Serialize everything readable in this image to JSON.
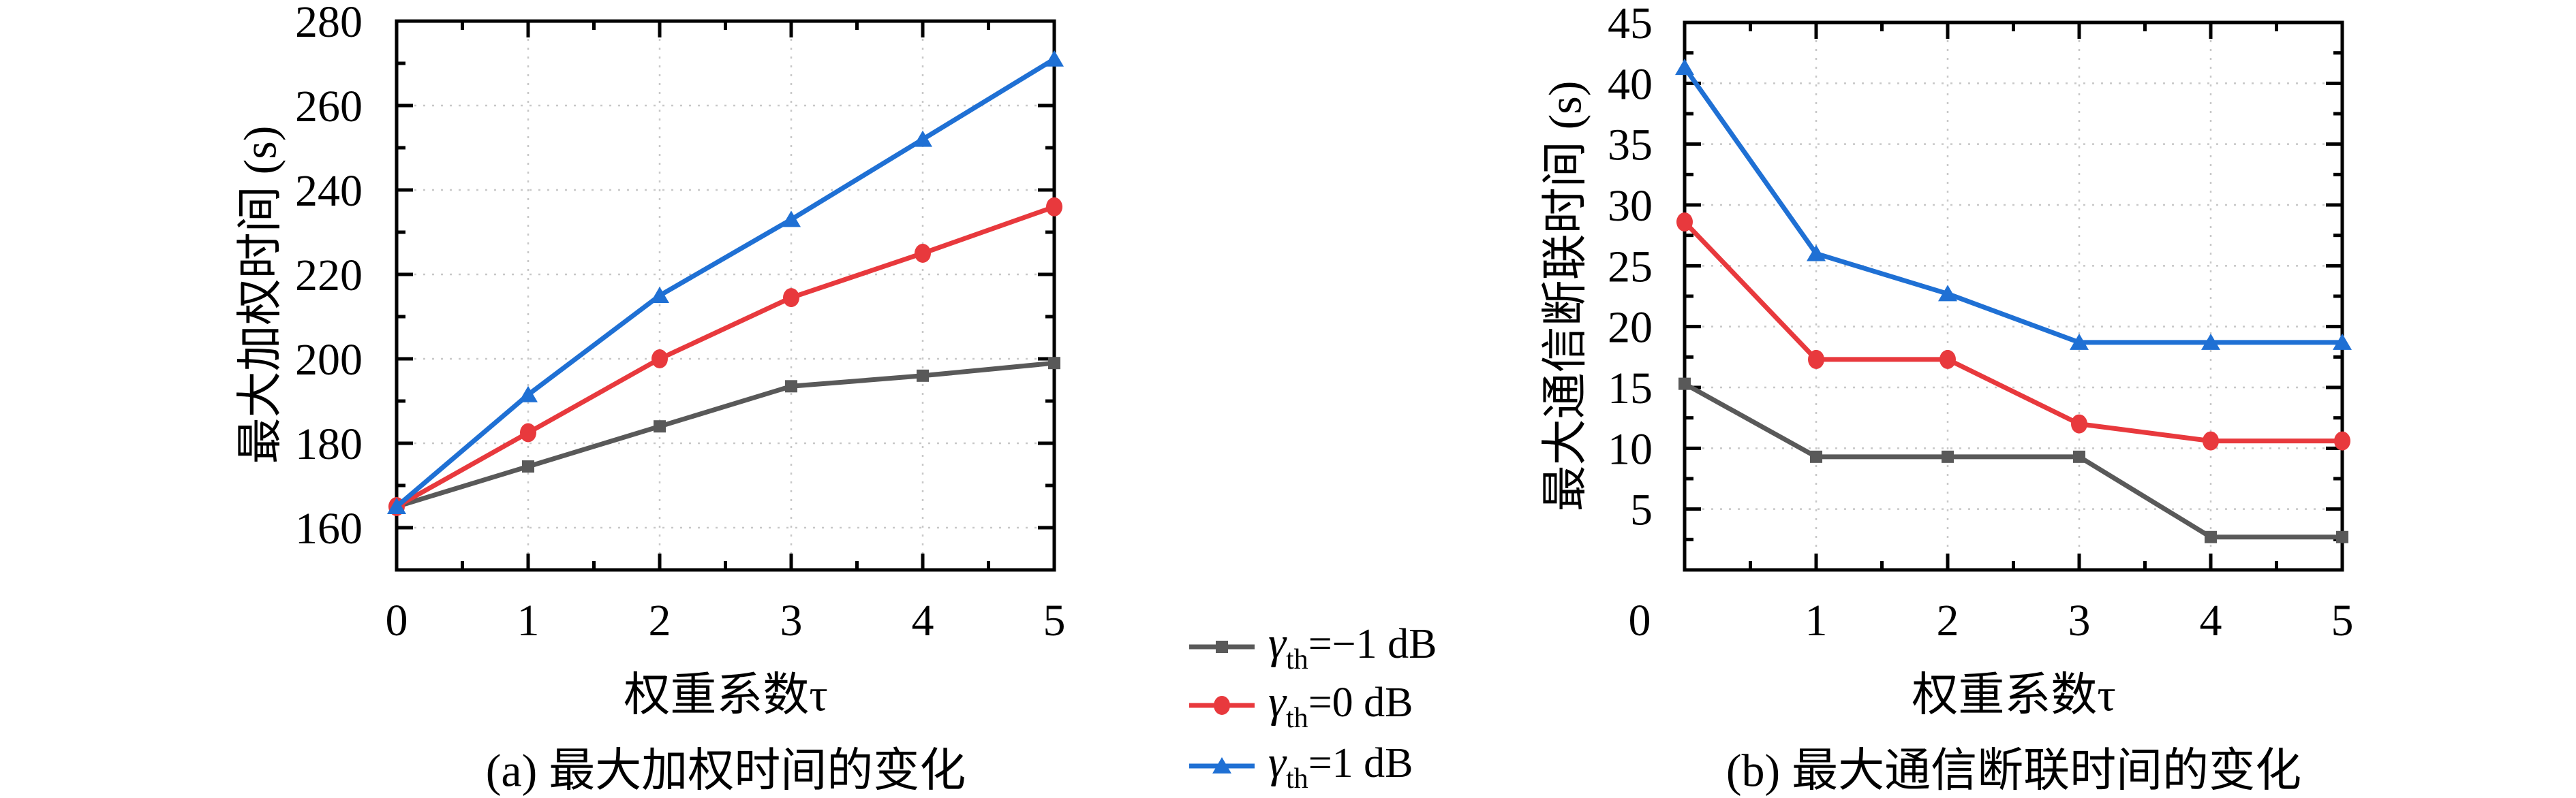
{
  "figure": {
    "background": "#ffffff"
  },
  "colors": {
    "axis": "#000000",
    "grid": "#c8c8c8",
    "series_gray": "#595959",
    "series_red": "#e8393d",
    "series_blue": "#1f70d4"
  },
  "legend": {
    "items": [
      {
        "gamma": "γ",
        "sub": "th",
        "rest": "=−1 dB",
        "marker": "square",
        "color": "#595959"
      },
      {
        "gamma": "γ",
        "sub": "th",
        "rest": "=0 dB",
        "marker": "circle",
        "color": "#e8393d"
      },
      {
        "gamma": "γ",
        "sub": "th",
        "rest": "=1 dB",
        "marker": "triangle",
        "color": "#1f70d4"
      }
    ]
  },
  "chart_data": [
    {
      "type": "line",
      "panel": "a",
      "title": "(a) 最大加权时间的变化",
      "xlabel": "权重系数τ",
      "ylabel": "最大加权时间 (s)",
      "xlim": [
        0,
        5
      ],
      "ylim": [
        150,
        280
      ],
      "xticks": [
        0,
        1,
        2,
        3,
        4,
        5
      ],
      "yticks": [
        160,
        180,
        200,
        220,
        240,
        260,
        280
      ],
      "x_minor_step": 0.5,
      "y_minor_step": 10,
      "grid": true,
      "x": [
        0,
        1,
        2,
        3,
        4,
        5
      ],
      "series": [
        {
          "name": "γth=−1 dB",
          "marker": "square",
          "color": "#595959",
          "values": [
            165,
            174.5,
            184,
            193.5,
            196,
            199
          ]
        },
        {
          "name": "γth=0 dB",
          "marker": "circle",
          "color": "#e8393d",
          "values": [
            165,
            182.5,
            200,
            214.5,
            225,
            236
          ]
        },
        {
          "name": "γth=1 dB",
          "marker": "triangle",
          "color": "#1f70d4",
          "values": [
            165,
            191.5,
            215,
            233,
            252,
            271
          ]
        }
      ]
    },
    {
      "type": "line",
      "panel": "b",
      "title": "(b) 最大通信断联时间的变化",
      "xlabel": "权重系数τ",
      "ylabel": "最大通信断联时间 (s)",
      "xlim": [
        0,
        5
      ],
      "ylim": [
        0,
        45
      ],
      "xticks": [
        0,
        1,
        2,
        3,
        4,
        5
      ],
      "yticks": [
        5,
        10,
        15,
        20,
        25,
        30,
        35,
        40,
        45
      ],
      "x_minor_step": 0.5,
      "y_minor_step": 2.5,
      "grid": true,
      "x": [
        0,
        1,
        2,
        3,
        4,
        5
      ],
      "series": [
        {
          "name": "γth=−1 dB",
          "marker": "square",
          "color": "#595959",
          "values": [
            15.3,
            9.3,
            9.3,
            9.3,
            2.7,
            2.7
          ]
        },
        {
          "name": "γth=0 dB",
          "marker": "circle",
          "color": "#e8393d",
          "values": [
            28.6,
            17.3,
            17.3,
            12,
            10.6,
            10.6
          ]
        },
        {
          "name": "γth=1 dB",
          "marker": "triangle",
          "color": "#1f70d4",
          "values": [
            41.3,
            26,
            22.7,
            18.7,
            18.7,
            18.7
          ]
        }
      ]
    }
  ]
}
